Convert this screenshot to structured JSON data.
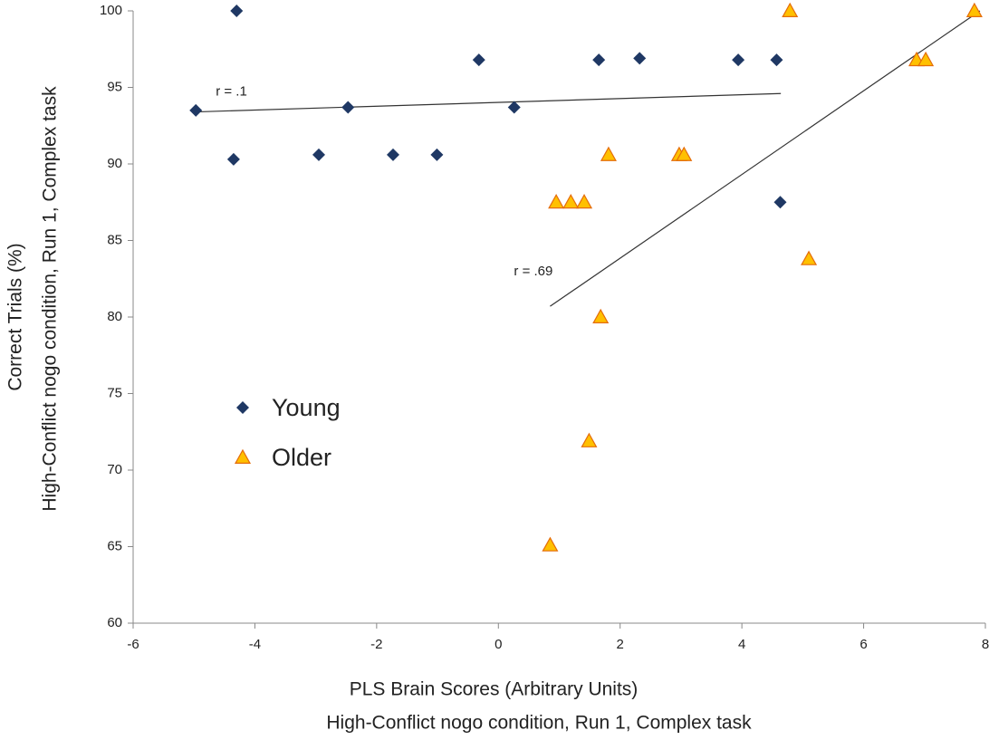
{
  "chart_data": {
    "type": "scatter",
    "xlabel": "PLS Brain Scores (Arbitrary Units)",
    "xlabel_sub": "High-Conflict nogo condition, Run 1, Complex task",
    "ylabel": "Correct Trials (%)",
    "ylabel_sub": "High-Conflict nogo condition, Run 1, Complex task",
    "xlim": [
      -6,
      8
    ],
    "xticks": [
      -6,
      -4,
      -2,
      0,
      2,
      4,
      6,
      8
    ],
    "ylim": [
      60,
      100
    ],
    "yticks": [
      60,
      65,
      70,
      75,
      80,
      85,
      90,
      95,
      100
    ],
    "grid": false,
    "series": [
      {
        "name": "Young",
        "color": "#1f3864",
        "marker": "diamond",
        "x": [
          -4.97,
          -4.3,
          -4.35,
          -2.95,
          -2.47,
          -1.73,
          -1.01,
          -0.32,
          0.26,
          1.65,
          2.32,
          3.94,
          4.57,
          4.63
        ],
        "values": [
          93.5,
          100,
          90.3,
          90.6,
          93.7,
          90.6,
          90.6,
          96.8,
          93.7,
          96.8,
          96.9,
          96.8,
          96.8,
          87.5
        ]
      },
      {
        "name": "Older",
        "color": "#ffc000",
        "marker": "triangle",
        "x": [
          4.79,
          7.82,
          6.87,
          7.02,
          1.81,
          2.97,
          3.05,
          0.95,
          1.19,
          1.41,
          5.1,
          1.68,
          1.49,
          0.85
        ],
        "values": [
          100,
          100,
          96.8,
          96.8,
          90.6,
          90.6,
          90.6,
          87.5,
          87.5,
          87.5,
          83.8,
          80,
          71.9,
          65.1
        ]
      }
    ],
    "trend_lines": [
      {
        "annotation": "r = .1",
        "color": "#333333",
        "x": [
          -4.97,
          4.64
        ],
        "values": [
          93.4,
          94.6
        ]
      },
      {
        "annotation": "r = .69",
        "color": "#333333",
        "x": [
          0.85,
          7.91
        ],
        "values": [
          80.7,
          100
        ]
      }
    ]
  }
}
